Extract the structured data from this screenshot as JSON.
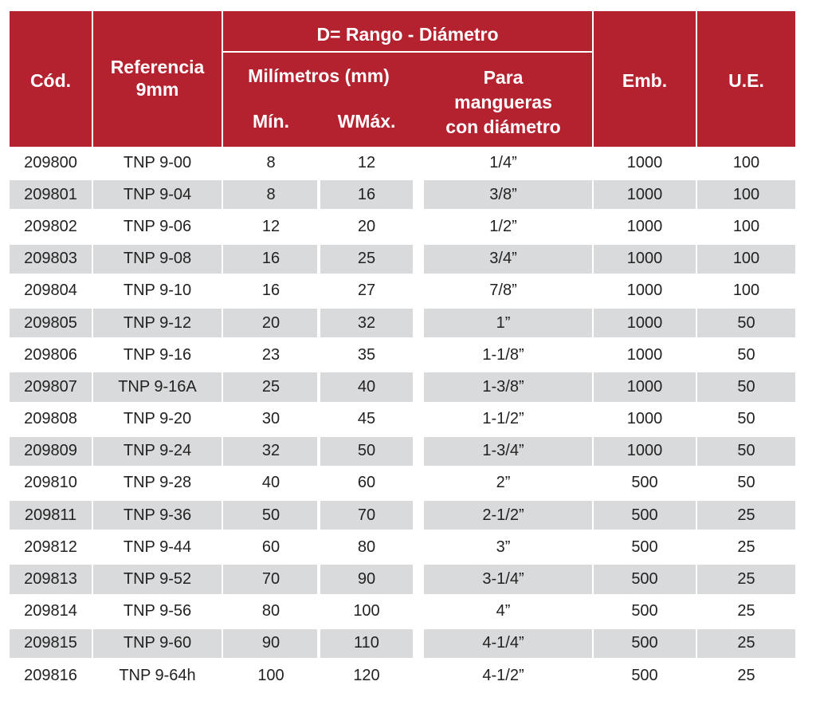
{
  "header": {
    "cod": "Cód.",
    "referencia": "Referencia\n9mm",
    "rango": "D= Rango - Diámetro",
    "milimetros": "Milímetros (mm)",
    "min": "Mín.",
    "max": "WMáx.",
    "para": "Para\nmangueras\ncon diámetro",
    "emb": "Emb.",
    "ue": "U.E."
  },
  "colors": {
    "header_bg": "#b5222f",
    "row_alt": "#d9dadb"
  },
  "rows": [
    {
      "cod": "209800",
      "ref": "TNP 9-00",
      "min": "8",
      "max": "12",
      "para": "1/4”",
      "emb": "1000",
      "ue": "100"
    },
    {
      "cod": "209801",
      "ref": "TNP 9-04",
      "min": "8",
      "max": "16",
      "para": "3/8”",
      "emb": "1000",
      "ue": "100"
    },
    {
      "cod": "209802",
      "ref": "TNP 9-06",
      "min": "12",
      "max": "20",
      "para": "1/2”",
      "emb": "1000",
      "ue": "100"
    },
    {
      "cod": "209803",
      "ref": "TNP 9-08",
      "min": "16",
      "max": "25",
      "para": "3/4”",
      "emb": "1000",
      "ue": "100"
    },
    {
      "cod": "209804",
      "ref": "TNP 9-10",
      "min": "16",
      "max": "27",
      "para": "7/8”",
      "emb": "1000",
      "ue": "100"
    },
    {
      "cod": "209805",
      "ref": "TNP 9-12",
      "min": "20",
      "max": "32",
      "para": "1”",
      "emb": "1000",
      "ue": "50"
    },
    {
      "cod": "209806",
      "ref": "TNP 9-16",
      "min": "23",
      "max": "35",
      "para": "1-1/8”",
      "emb": "1000",
      "ue": "50"
    },
    {
      "cod": "209807",
      "ref": "TNP 9-16A",
      "min": "25",
      "max": "40",
      "para": "1-3/8”",
      "emb": "1000",
      "ue": "50"
    },
    {
      "cod": "209808",
      "ref": "TNP 9-20",
      "min": "30",
      "max": "45",
      "para": "1-1/2”",
      "emb": "1000",
      "ue": "50"
    },
    {
      "cod": "209809",
      "ref": "TNP 9-24",
      "min": "32",
      "max": "50",
      "para": "1-3/4”",
      "emb": "1000",
      "ue": "50"
    },
    {
      "cod": "209810",
      "ref": "TNP 9-28",
      "min": "40",
      "max": "60",
      "para": "2”",
      "emb": "500",
      "ue": "50"
    },
    {
      "cod": "209811",
      "ref": "TNP 9-36",
      "min": "50",
      "max": "70",
      "para": "2-1/2”",
      "emb": "500",
      "ue": "25"
    },
    {
      "cod": "209812",
      "ref": "TNP 9-44",
      "min": "60",
      "max": "80",
      "para": "3”",
      "emb": "500",
      "ue": "25"
    },
    {
      "cod": "209813",
      "ref": "TNP 9-52",
      "min": "70",
      "max": "90",
      "para": "3-1/4”",
      "emb": "500",
      "ue": "25"
    },
    {
      "cod": "209814",
      "ref": "TNP 9-56",
      "min": "80",
      "max": "100",
      "para": "4”",
      "emb": "500",
      "ue": "25"
    },
    {
      "cod": "209815",
      "ref": "TNP 9-60",
      "min": "90",
      "max": "110",
      "para": "4-1/4”",
      "emb": "500",
      "ue": "25"
    },
    {
      "cod": "209816",
      "ref": "TNP 9-64h",
      "min": "100",
      "max": "120",
      "para": "4-1/2”",
      "emb": "500",
      "ue": "25"
    }
  ]
}
